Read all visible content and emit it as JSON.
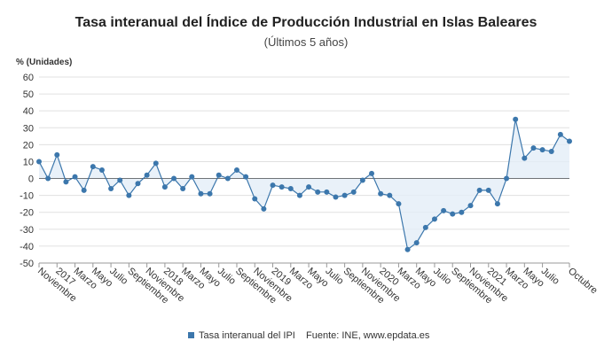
{
  "chart_data": {
    "type": "line",
    "title": "Tasa interanual del Índice de Producción Industrial en Islas Baleares",
    "subtitle": "(Últimos 5 años)",
    "y_label": "% (Unidades)",
    "source": "Fuente: INE, www.epdata.es",
    "categories": [
      "Noviembre",
      null,
      "2017",
      null,
      "Marzo",
      null,
      "Mayo",
      null,
      "Julio",
      null,
      "Septiembre",
      null,
      "Noviembre",
      null,
      "2018",
      null,
      "Marzo",
      null,
      "Mayo",
      null,
      "Julio",
      null,
      "Septiembre",
      null,
      "Noviembre",
      null,
      "2019",
      null,
      "Marzo",
      null,
      "Mayo",
      null,
      "Julio",
      null,
      "Septiembre",
      null,
      "Noviembre",
      null,
      "2020",
      null,
      "Marzo",
      null,
      "Mayo",
      null,
      "Julio",
      null,
      "Septiembre",
      null,
      "Noviembre",
      null,
      "2021",
      null,
      "Marzo",
      null,
      "Mayo",
      null,
      "Julio",
      null,
      null,
      "Octubre"
    ],
    "series": [
      {
        "name": "Tasa interanual del IPI",
        "color": "#3c77ac",
        "values": [
          10,
          0,
          14,
          -2,
          1,
          -7,
          7,
          5,
          -6,
          -1,
          -10,
          -3,
          2,
          9,
          -5,
          0,
          -6,
          1,
          -9,
          -9,
          2,
          0,
          5,
          1,
          -12,
          -18,
          -4,
          -5,
          -6,
          -10,
          -5,
          -8,
          -8,
          -11,
          -10,
          -8,
          -1,
          3,
          -9,
          -10,
          -15,
          -42,
          -38,
          -29,
          -24,
          -19,
          -21,
          -20,
          -16,
          -7,
          -7,
          -15,
          0,
          35,
          12,
          18,
          17,
          16,
          26,
          22
        ]
      }
    ],
    "ylim": [
      -50,
      60
    ],
    "yticks": [
      -50,
      -40,
      -30,
      -20,
      -10,
      0,
      10,
      20,
      30,
      40,
      50,
      60
    ],
    "grid": true,
    "legend": "bottom"
  }
}
